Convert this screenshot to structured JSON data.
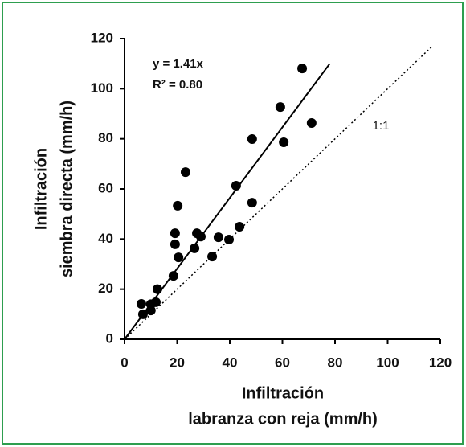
{
  "chart_data": {
    "type": "scatter",
    "x_label": [
      "Infiltración",
      "labranza con reja (mm/h)"
    ],
    "y_label": [
      "Infiltración",
      "siembra directa (mm/h)"
    ],
    "annotations": [
      "y = 1.41x",
      "R² = 0.80"
    ],
    "xlim": [
      0,
      120
    ],
    "ylim": [
      0,
      120
    ],
    "xticks": [
      0,
      20,
      40,
      60,
      80,
      100,
      120
    ],
    "yticks": [
      0,
      20,
      40,
      60,
      80,
      100,
      120
    ],
    "frame_color": "#2e9e4f",
    "series": [
      {
        "type": "scatter",
        "color": "#000000",
        "x": [
          6.4,
          7.0,
          10,
          10,
          11.9,
          12.5,
          18.6,
          19.2,
          19.2,
          20.5,
          20.2,
          23.2,
          26.6,
          27.5,
          29,
          33.3,
          35.7,
          39.7,
          42.4,
          43.7,
          48.5,
          48.5,
          59.2,
          60.5,
          67.5,
          71.1
        ],
        "values": [
          14.1,
          10,
          14,
          11.5,
          14.8,
          20,
          25.3,
          42.3,
          37.9,
          32.7,
          53.3,
          66.7,
          36.3,
          42.3,
          41,
          33,
          40.7,
          39.8,
          61.3,
          44.9,
          54.5,
          79.9,
          92.7,
          78.6,
          108.1,
          86.3
        ]
      },
      {
        "type": "line",
        "style": "solid",
        "color": "#000000",
        "x": [
          0,
          78
        ],
        "values": [
          0,
          110
        ]
      },
      {
        "type": "line",
        "style": "dotted",
        "color": "#000000",
        "label": "1:1",
        "x": [
          0,
          117
        ],
        "values": [
          0,
          117
        ]
      }
    ]
  }
}
